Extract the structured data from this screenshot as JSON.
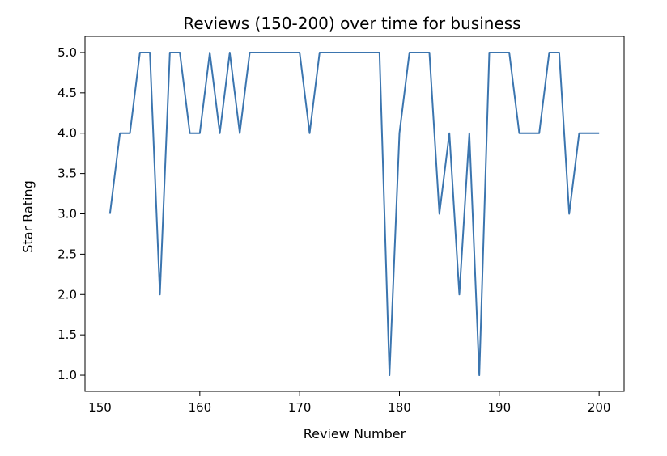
{
  "chart_data": {
    "type": "line",
    "title": "Reviews (150-200) over time for business",
    "xlabel": "Review Number",
    "ylabel": "Star Rating",
    "xlim": [
      148.5,
      202.5
    ],
    "ylim": [
      0.8,
      5.2
    ],
    "xticks": [
      150,
      160,
      170,
      180,
      190,
      200
    ],
    "yticks": [
      1.0,
      1.5,
      2.0,
      2.5,
      3.0,
      3.5,
      4.0,
      4.5,
      5.0
    ],
    "grid": false,
    "line_color": "#3b75af",
    "series": [
      {
        "x": [
          151,
          152,
          153,
          154,
          155,
          156,
          157,
          158,
          159,
          160,
          161,
          162,
          163,
          164,
          165,
          166,
          167,
          168,
          169,
          170,
          171,
          172,
          173,
          174,
          175,
          176,
          177,
          178,
          179,
          180,
          181,
          182,
          183,
          184,
          185,
          186,
          187,
          188,
          189,
          190,
          191,
          192,
          193,
          194,
          195,
          196,
          197,
          198,
          199,
          200
        ],
        "values": [
          3,
          4,
          4,
          5,
          5,
          2,
          5,
          5,
          4,
          4,
          5,
          4,
          5,
          4,
          5,
          5,
          5,
          5,
          5,
          5,
          4,
          5,
          5,
          5,
          5,
          5,
          5,
          5,
          1,
          4,
          5,
          5,
          5,
          3,
          4,
          2,
          4,
          1,
          5,
          5,
          5,
          4,
          4,
          4,
          5,
          5,
          3,
          4,
          4,
          4
        ]
      }
    ]
  }
}
